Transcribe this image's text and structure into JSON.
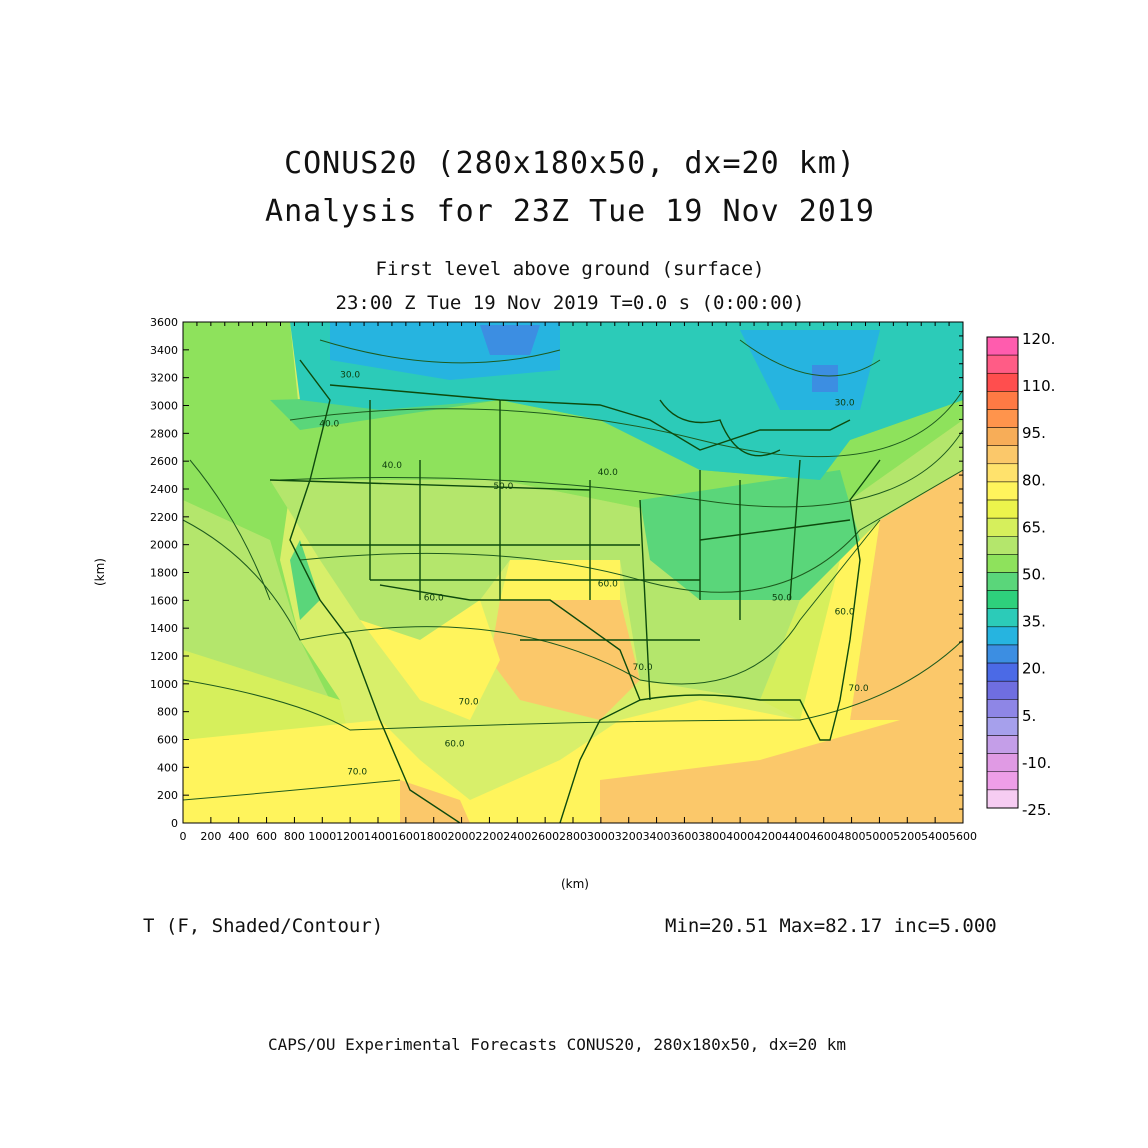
{
  "header": {
    "title_line1": "CONUS20 (280x180x50, dx=20 km)",
    "title_line2": "Analysis for 23Z Tue 19 Nov 2019",
    "subtitle_line1": "First level above ground (surface)",
    "subtitle_line2": "23:00 Z Tue 19 Nov 2019    T=0.0 s (0:00:00)"
  },
  "axes": {
    "x_ticks": [
      "0",
      "200",
      "400",
      "600",
      "800",
      "1000",
      "1200",
      "1400",
      "1600",
      "1800",
      "2000",
      "2200",
      "2400",
      "2600",
      "2800",
      "3000",
      "3200",
      "3400",
      "3600",
      "3800",
      "4000",
      "4200",
      "4400",
      "4600",
      "4800",
      "5000",
      "5200",
      "5400",
      "5600"
    ],
    "y_ticks": [
      "0",
      "200",
      "400",
      "600",
      "800",
      "1000",
      "1200",
      "1400",
      "1600",
      "1800",
      "2000",
      "2200",
      "2400",
      "2600",
      "2800",
      "3000",
      "3200",
      "3400",
      "3600"
    ],
    "x_label": "(km)",
    "y_label": "(km)",
    "x_range": [
      0,
      5600
    ],
    "y_range": [
      0,
      3600
    ]
  },
  "contour_labels": [
    {
      "text": "30.0",
      "x": 1200,
      "y": 3200
    },
    {
      "text": "40.0",
      "x": 1050,
      "y": 2850
    },
    {
      "text": "40.0",
      "x": 1500,
      "y": 2550
    },
    {
      "text": "50.0",
      "x": 2300,
      "y": 2400
    },
    {
      "text": "40.0",
      "x": 3050,
      "y": 2500
    },
    {
      "text": "30.0",
      "x": 4750,
      "y": 3000
    },
    {
      "text": "60.0",
      "x": 3050,
      "y": 1700
    },
    {
      "text": "60.0",
      "x": 1800,
      "y": 1600
    },
    {
      "text": "50.0",
      "x": 4300,
      "y": 1600
    },
    {
      "text": "60.0",
      "x": 4750,
      "y": 1500
    },
    {
      "text": "70.0",
      "x": 3300,
      "y": 1100
    },
    {
      "text": "70.0",
      "x": 4850,
      "y": 950
    },
    {
      "text": "70.0",
      "x": 2050,
      "y": 850
    },
    {
      "text": "70.0",
      "x": 1250,
      "y": 350
    },
    {
      "text": "60.0",
      "x": 1950,
      "y": 550
    }
  ],
  "colorbar": {
    "labels": [
      "120.",
      "110.",
      "95.",
      "80.",
      "65.",
      "50.",
      "35.",
      "20.",
      "5.",
      "-10.",
      "-25."
    ],
    "colors": [
      "#ff5cae",
      "#ff5c86",
      "#ff4e4e",
      "#ff7a44",
      "#ff944c",
      "#f7ad58",
      "#fbc86a",
      "#ffe26c",
      "#fff45c",
      "#ecf44c",
      "#d6ef5c",
      "#b4e66c",
      "#8ee25c",
      "#5ad67a",
      "#2ed07c",
      "#2ccbb8",
      "#26b4e0",
      "#3c8ee2",
      "#4b6ae6",
      "#6f6ee0",
      "#8e86e6",
      "#a6a0ec",
      "#c49ee8",
      "#e09ae4",
      "#ee9ee8",
      "#f6ccf2"
    ]
  },
  "variable_label": "T (F, Shaded/Contour)",
  "stats": "Min=20.51 Max=82.17 inc=5.000",
  "footer": "CAPS/OU Experimental Forecasts  CONUS20, 280x180x50, dx=20 km"
}
